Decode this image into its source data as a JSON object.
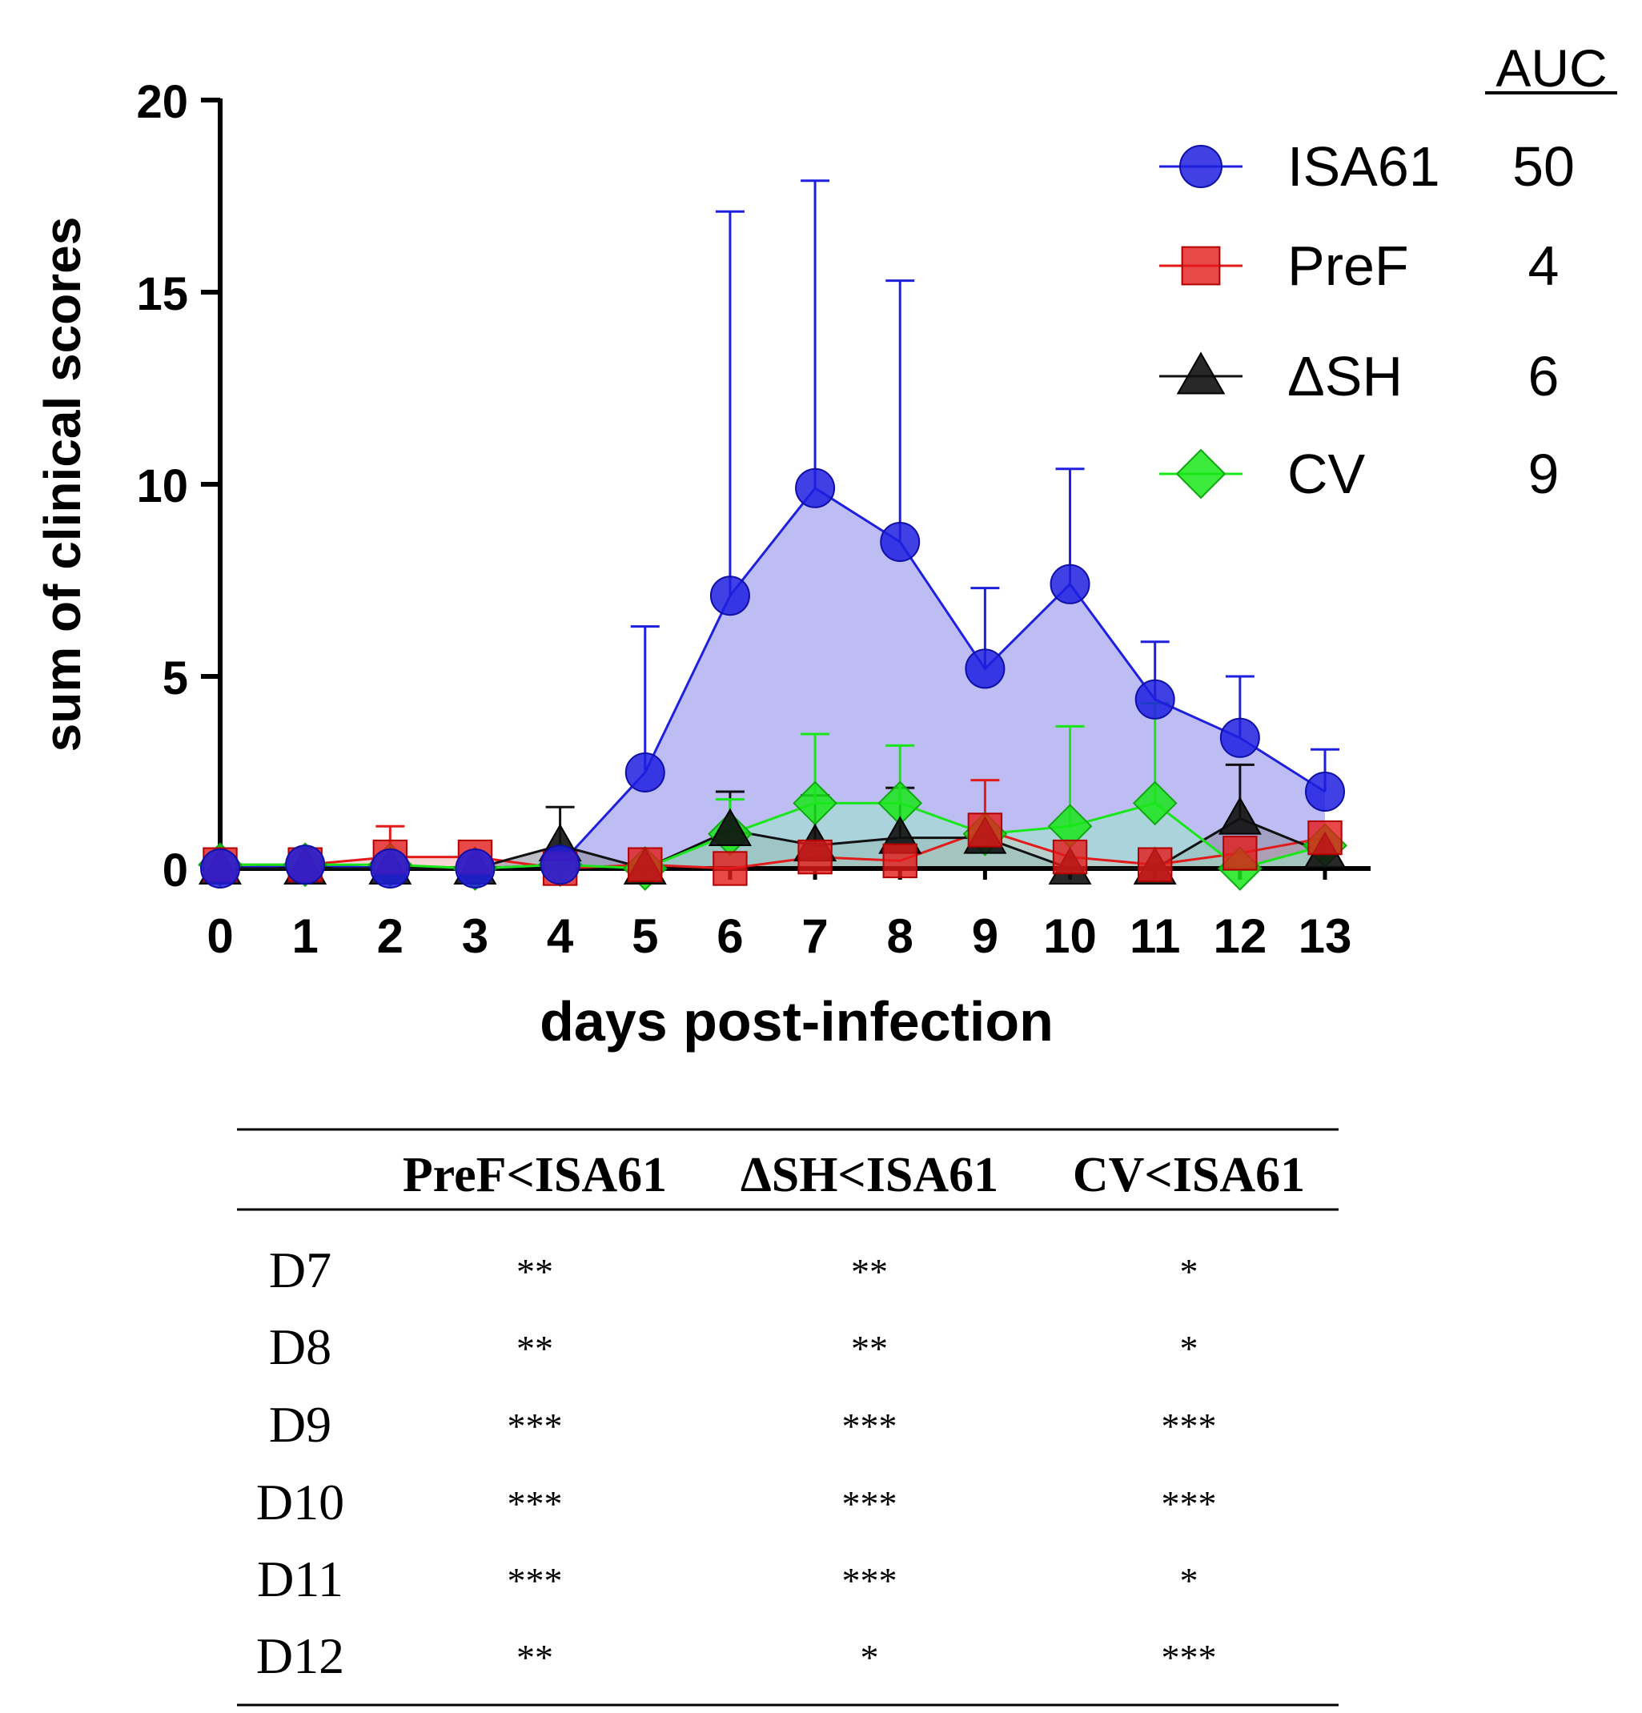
{
  "chart_data": {
    "type": "line",
    "title": "",
    "xlabel": "days post-infection",
    "ylabel": "sum of clinical scores",
    "x": [
      0,
      1,
      2,
      3,
      4,
      5,
      6,
      7,
      8,
      9,
      10,
      11,
      12,
      13
    ],
    "xticks": [
      "0",
      "1",
      "2",
      "3",
      "4",
      "5",
      "6",
      "7",
      "8",
      "9",
      "10",
      "11",
      "12",
      "13"
    ],
    "yticks": [
      "0",
      "5",
      "10",
      "15",
      "20"
    ],
    "ylim": [
      0,
      20
    ],
    "xlim": [
      0,
      13.5
    ],
    "grid": false,
    "legend_position": "top-right",
    "auc_header": "AUC",
    "series": [
      {
        "name": "ISA61",
        "auc": "50",
        "marker": "circle",
        "color": "#1f1fe0",
        "fill": "#b9b9f3",
        "values": [
          0,
          0.1,
          0,
          0,
          0.1,
          2.5,
          7.1,
          9.9,
          8.5,
          5.2,
          7.4,
          4.4,
          3.4,
          2.0
        ],
        "err": [
          0,
          0,
          0,
          0,
          0,
          3.8,
          10.0,
          8.0,
          6.8,
          2.1,
          3.0,
          1.5,
          1.6,
          1.1
        ]
      },
      {
        "name": "PreF",
        "auc": "4",
        "marker": "square",
        "color": "#e31a1a",
        "fill": "#f3b3b3",
        "values": [
          0.1,
          0.1,
          0.3,
          0.3,
          0,
          0.1,
          0,
          0.3,
          0.2,
          1.0,
          0.3,
          0.1,
          0.4,
          0.8
        ],
        "err": [
          0,
          0,
          0.8,
          0,
          0,
          0,
          0,
          0,
          0,
          1.3,
          0,
          0,
          0,
          0
        ]
      },
      {
        "name": "ΔSH",
        "auc": "6",
        "marker": "triangle",
        "color": "#111111",
        "fill": "#8a8a9a",
        "values": [
          0,
          0,
          0,
          0,
          0.6,
          0,
          1.0,
          0.6,
          0.8,
          0.8,
          0,
          0,
          1.3,
          0.4
        ],
        "err": [
          0,
          0,
          0,
          0,
          1.0,
          0,
          1.0,
          1.3,
          1.3,
          0,
          0,
          0,
          1.4,
          0
        ]
      },
      {
        "name": "CV",
        "auc": "9",
        "marker": "diamond",
        "color": "#19e619",
        "fill": "#9de6c8",
        "values": [
          0.1,
          0.1,
          0.1,
          0,
          0.1,
          0,
          0.9,
          1.7,
          1.7,
          0.9,
          1.1,
          1.7,
          0,
          0.6
        ],
        "err": [
          0,
          0,
          0,
          0,
          0,
          0,
          0.9,
          1.8,
          1.5,
          0,
          2.6,
          2.6,
          0,
          0
        ]
      }
    ]
  },
  "stats_table": {
    "columns": [
      "",
      "PreF<ISA61",
      "ΔSH<ISA61",
      "CV<ISA61"
    ],
    "rows": [
      {
        "day": "D7",
        "cells": [
          "**",
          "**",
          "*"
        ]
      },
      {
        "day": "D8",
        "cells": [
          "**",
          "**",
          "*"
        ]
      },
      {
        "day": "D9",
        "cells": [
          "***",
          "***",
          "***"
        ]
      },
      {
        "day": "D10",
        "cells": [
          "***",
          "***",
          "***"
        ]
      },
      {
        "day": "D11",
        "cells": [
          "***",
          "***",
          "*"
        ]
      },
      {
        "day": "D12",
        "cells": [
          "**",
          "*",
          "***"
        ]
      }
    ]
  }
}
